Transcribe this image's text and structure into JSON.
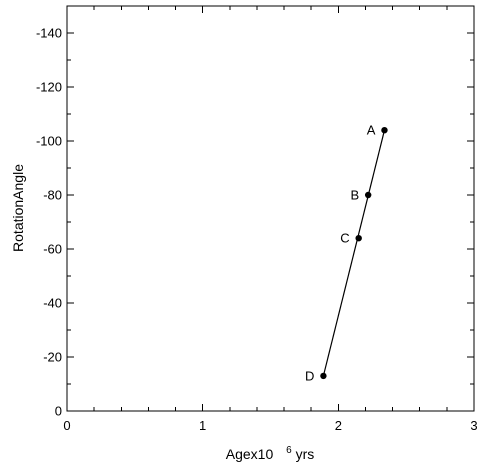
{
  "chart_data": {
    "type": "line",
    "xlabel_prefix": "Agex10",
    "xlabel_sup": "6",
    "xlabel_suffix": "yrs",
    "ylabel": "RotationAngle",
    "xlim": [
      0,
      3
    ],
    "ylim": [
      0,
      -150
    ],
    "x_ticks": [
      {
        "value": 0,
        "label": "0"
      },
      {
        "value": 1,
        "label": "1"
      },
      {
        "value": 2,
        "label": "2"
      },
      {
        "value": 3,
        "label": "3"
      }
    ],
    "y_ticks": [
      {
        "value": 0,
        "label": "0"
      },
      {
        "value": -20,
        "label": "-20"
      },
      {
        "value": -40,
        "label": "-40"
      },
      {
        "value": -60,
        "label": "-60"
      },
      {
        "value": -80,
        "label": "-80"
      },
      {
        "value": -100,
        "label": "-100"
      },
      {
        "value": -120,
        "label": "-120"
      },
      {
        "value": -140,
        "label": "-140"
      }
    ],
    "x_minor_step": 0.2,
    "y_minor_step": 10,
    "points": [
      {
        "label": "A",
        "x": 2.34,
        "y": -104
      },
      {
        "label": "B",
        "x": 2.22,
        "y": -80
      },
      {
        "label": "C",
        "x": 2.15,
        "y": -64
      },
      {
        "label": "D",
        "x": 1.89,
        "y": -13
      }
    ],
    "fit_line": {
      "x": [
        1.89,
        2.34
      ],
      "y": [
        -13,
        -104
      ]
    },
    "grid": false
  }
}
